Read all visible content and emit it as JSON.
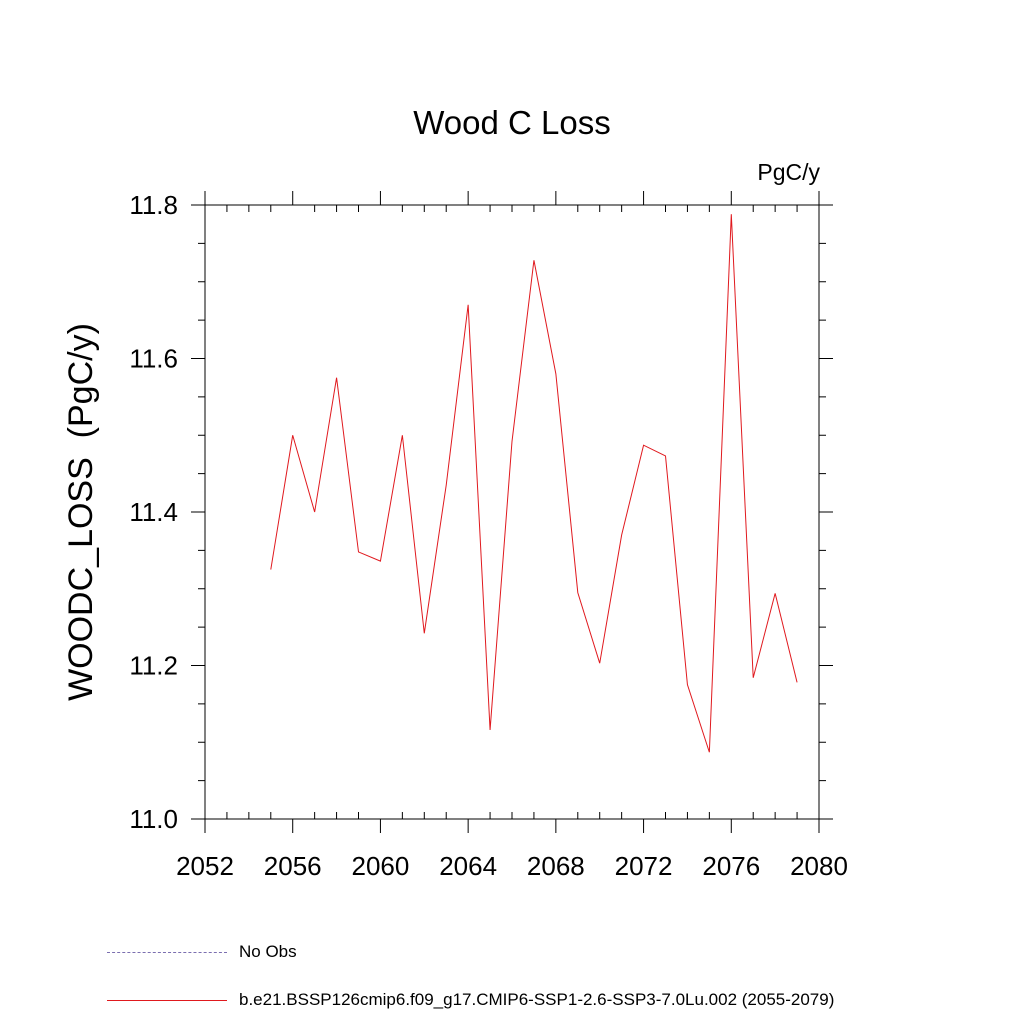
{
  "chart_data": {
    "type": "line",
    "title": "Wood C Loss",
    "units_label": "PgC/y",
    "xlabel": "",
    "ylabel": "WOODC_LOSS  (PgC/y)",
    "xlim": [
      2052,
      2080
    ],
    "ylim": [
      11.0,
      11.8
    ],
    "xticks": [
      2052,
      2056,
      2060,
      2064,
      2068,
      2072,
      2076,
      2080
    ],
    "xtick_labels": [
      "2052",
      "2056",
      "2060",
      "2064",
      "2068",
      "2072",
      "2076",
      "2080"
    ],
    "yticks": [
      11.0,
      11.2,
      11.4,
      11.6,
      11.8
    ],
    "ytick_labels": [
      "11.0",
      "11.2",
      "11.4",
      "11.6",
      "11.8"
    ],
    "x_minor_step": 1,
    "y_minor_step": 0.05,
    "grid": false,
    "series": [
      {
        "name": "b.e21.BSSP126cmip6.f09_g17.CMIP6-SSP1-2.6-SSP3-7.0Lu.002 (2055-2079)",
        "color": "#e0191e",
        "x": [
          2055,
          2056,
          2057,
          2058,
          2059,
          2060,
          2061,
          2062,
          2063,
          2064,
          2065,
          2066,
          2067,
          2068,
          2069,
          2070,
          2071,
          2072,
          2073,
          2074,
          2075,
          2076,
          2077,
          2078,
          2079
        ],
        "values": [
          11.325,
          11.5,
          11.4,
          11.575,
          11.348,
          11.336,
          11.5,
          11.242,
          11.435,
          11.67,
          11.116,
          11.492,
          11.728,
          11.58,
          11.295,
          11.203,
          11.37,
          11.487,
          11.473,
          11.175,
          11.087,
          11.788,
          11.184,
          11.294,
          11.178
        ]
      }
    ],
    "legend": {
      "position": "bottom-left",
      "entries": [
        {
          "label": "No Obs",
          "color": "#7b6fb0",
          "style": "dashed"
        },
        {
          "label": "b.e21.BSSP126cmip6.f09_g17.CMIP6-SSP1-2.6-SSP3-7.0Lu.002 (2055-2079)",
          "color": "#e0191e",
          "style": "solid"
        }
      ]
    }
  }
}
